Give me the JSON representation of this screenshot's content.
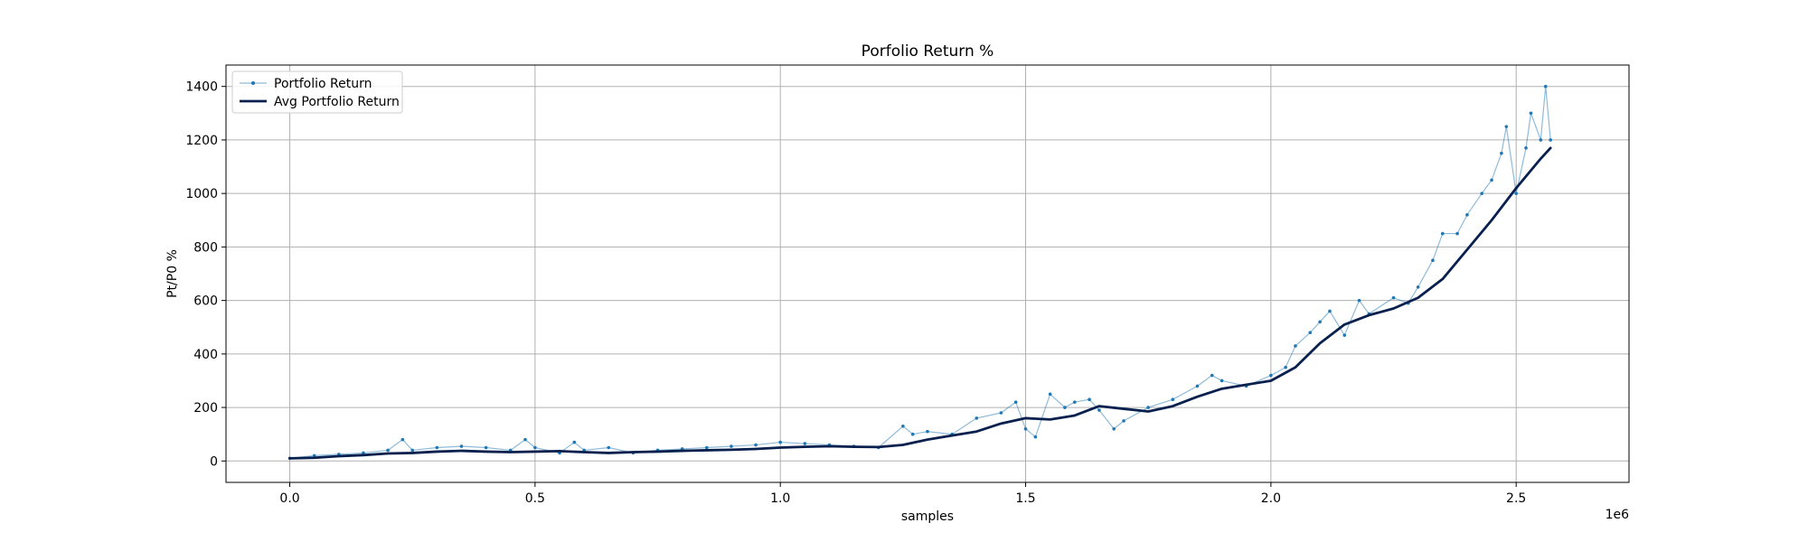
{
  "chart_data": {
    "type": "line",
    "title": "Porfolio Return %",
    "xlabel": "samples",
    "ylabel": "Pt/P0 %",
    "x_offset_text": "1e6",
    "xlim": [
      -0.13,
      2.73
    ],
    "ylim": [
      -80,
      1480
    ],
    "x_ticks": [
      0.0,
      0.5,
      1.0,
      1.5,
      2.0,
      2.5
    ],
    "x_tick_labels": [
      "0.0",
      "0.5",
      "1.0",
      "1.5",
      "2.0",
      "2.5"
    ],
    "y_ticks": [
      0,
      200,
      400,
      600,
      800,
      1000,
      1200,
      1400
    ],
    "y_tick_labels": [
      "0",
      "200",
      "400",
      "600",
      "800",
      "1000",
      "1200",
      "1400"
    ],
    "x_unit_scale": 1000000,
    "grid": true,
    "legend_position": "upper-left",
    "colors": {
      "return": "#1f77b4",
      "average": "#08204e"
    },
    "series": [
      {
        "name": "Portfolio Return",
        "style": "thin-line-with-markers",
        "x": [
          0.0,
          0.05,
          0.1,
          0.15,
          0.2,
          0.23,
          0.25,
          0.3,
          0.35,
          0.4,
          0.45,
          0.48,
          0.5,
          0.55,
          0.58,
          0.6,
          0.65,
          0.7,
          0.75,
          0.8,
          0.85,
          0.9,
          0.95,
          1.0,
          1.05,
          1.1,
          1.15,
          1.2,
          1.25,
          1.27,
          1.3,
          1.35,
          1.4,
          1.45,
          1.48,
          1.5,
          1.52,
          1.55,
          1.58,
          1.6,
          1.63,
          1.65,
          1.68,
          1.7,
          1.75,
          1.8,
          1.85,
          1.88,
          1.9,
          1.95,
          2.0,
          2.03,
          2.05,
          2.08,
          2.1,
          2.12,
          2.15,
          2.18,
          2.2,
          2.25,
          2.28,
          2.3,
          2.33,
          2.35,
          2.38,
          2.4,
          2.43,
          2.45,
          2.47,
          2.48,
          2.5,
          2.52,
          2.53,
          2.55,
          2.56,
          2.57
        ],
        "values": [
          10,
          20,
          25,
          30,
          40,
          80,
          40,
          50,
          55,
          50,
          40,
          80,
          50,
          30,
          70,
          40,
          50,
          30,
          40,
          45,
          50,
          55,
          60,
          70,
          65,
          60,
          55,
          50,
          130,
          100,
          110,
          100,
          160,
          180,
          220,
          120,
          90,
          250,
          200,
          220,
          230,
          190,
          120,
          150,
          200,
          230,
          280,
          320,
          300,
          280,
          320,
          350,
          430,
          480,
          520,
          560,
          470,
          600,
          550,
          610,
          590,
          650,
          750,
          850,
          850,
          920,
          1000,
          1050,
          1150,
          1250,
          1000,
          1170,
          1300,
          1200,
          1400,
          1200
        ]
      },
      {
        "name": "Avg Portfolio Return",
        "style": "thick-line",
        "x": [
          0.0,
          0.05,
          0.1,
          0.15,
          0.2,
          0.25,
          0.3,
          0.35,
          0.4,
          0.45,
          0.5,
          0.55,
          0.6,
          0.65,
          0.7,
          0.75,
          0.8,
          0.85,
          0.9,
          0.95,
          1.0,
          1.05,
          1.1,
          1.15,
          1.2,
          1.25,
          1.3,
          1.35,
          1.4,
          1.45,
          1.5,
          1.55,
          1.6,
          1.65,
          1.7,
          1.75,
          1.8,
          1.85,
          1.9,
          1.95,
          2.0,
          2.05,
          2.1,
          2.15,
          2.2,
          2.25,
          2.3,
          2.35,
          2.4,
          2.45,
          2.5,
          2.55,
          2.57
        ],
        "values": [
          10,
          12,
          18,
          22,
          28,
          30,
          35,
          38,
          35,
          33,
          35,
          37,
          33,
          30,
          33,
          35,
          38,
          40,
          42,
          45,
          50,
          53,
          55,
          53,
          52,
          60,
          80,
          95,
          110,
          140,
          160,
          155,
          170,
          205,
          195,
          185,
          205,
          240,
          270,
          285,
          300,
          350,
          440,
          510,
          545,
          570,
          610,
          680,
          790,
          900,
          1020,
          1130,
          1170
        ]
      }
    ]
  }
}
